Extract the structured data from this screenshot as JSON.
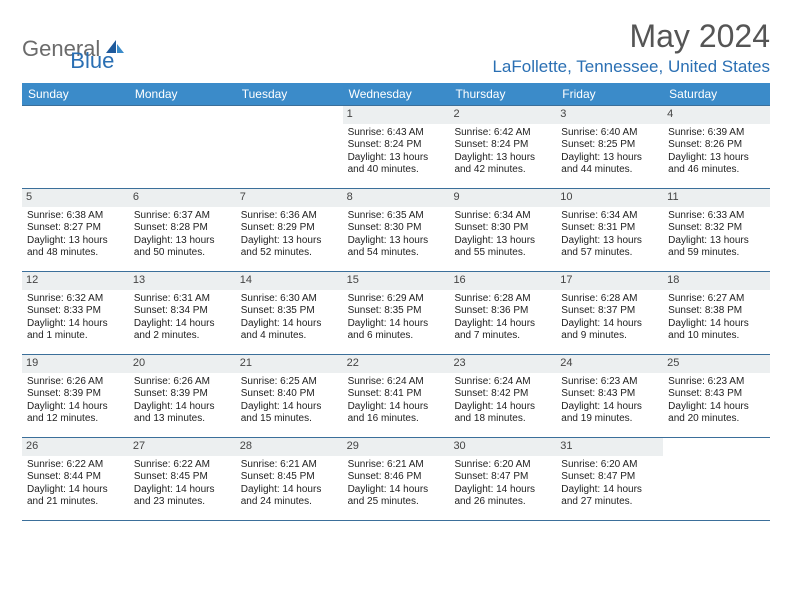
{
  "brand": {
    "part1": "General",
    "part2": "Blue"
  },
  "title": "May 2024",
  "location": "LaFollette, Tennessee, United States",
  "colors": {
    "header_bg": "#3b8bc9",
    "header_text": "#ffffff",
    "row_border": "#3b6f9a",
    "daynum_bg": "#eceff0",
    "accent": "#2a6fb3",
    "logo_gray": "#6b6b6b"
  },
  "dow": [
    "Sunday",
    "Monday",
    "Tuesday",
    "Wednesday",
    "Thursday",
    "Friday",
    "Saturday"
  ],
  "weeks": [
    [
      {
        "n": "",
        "sr": "",
        "ss": "",
        "dl": ""
      },
      {
        "n": "",
        "sr": "",
        "ss": "",
        "dl": ""
      },
      {
        "n": "",
        "sr": "",
        "ss": "",
        "dl": ""
      },
      {
        "n": "1",
        "sr": "Sunrise: 6:43 AM",
        "ss": "Sunset: 8:24 PM",
        "dl": "Daylight: 13 hours and 40 minutes."
      },
      {
        "n": "2",
        "sr": "Sunrise: 6:42 AM",
        "ss": "Sunset: 8:24 PM",
        "dl": "Daylight: 13 hours and 42 minutes."
      },
      {
        "n": "3",
        "sr": "Sunrise: 6:40 AM",
        "ss": "Sunset: 8:25 PM",
        "dl": "Daylight: 13 hours and 44 minutes."
      },
      {
        "n": "4",
        "sr": "Sunrise: 6:39 AM",
        "ss": "Sunset: 8:26 PM",
        "dl": "Daylight: 13 hours and 46 minutes."
      }
    ],
    [
      {
        "n": "5",
        "sr": "Sunrise: 6:38 AM",
        "ss": "Sunset: 8:27 PM",
        "dl": "Daylight: 13 hours and 48 minutes."
      },
      {
        "n": "6",
        "sr": "Sunrise: 6:37 AM",
        "ss": "Sunset: 8:28 PM",
        "dl": "Daylight: 13 hours and 50 minutes."
      },
      {
        "n": "7",
        "sr": "Sunrise: 6:36 AM",
        "ss": "Sunset: 8:29 PM",
        "dl": "Daylight: 13 hours and 52 minutes."
      },
      {
        "n": "8",
        "sr": "Sunrise: 6:35 AM",
        "ss": "Sunset: 8:30 PM",
        "dl": "Daylight: 13 hours and 54 minutes."
      },
      {
        "n": "9",
        "sr": "Sunrise: 6:34 AM",
        "ss": "Sunset: 8:30 PM",
        "dl": "Daylight: 13 hours and 55 minutes."
      },
      {
        "n": "10",
        "sr": "Sunrise: 6:34 AM",
        "ss": "Sunset: 8:31 PM",
        "dl": "Daylight: 13 hours and 57 minutes."
      },
      {
        "n": "11",
        "sr": "Sunrise: 6:33 AM",
        "ss": "Sunset: 8:32 PM",
        "dl": "Daylight: 13 hours and 59 minutes."
      }
    ],
    [
      {
        "n": "12",
        "sr": "Sunrise: 6:32 AM",
        "ss": "Sunset: 8:33 PM",
        "dl": "Daylight: 14 hours and 1 minute."
      },
      {
        "n": "13",
        "sr": "Sunrise: 6:31 AM",
        "ss": "Sunset: 8:34 PM",
        "dl": "Daylight: 14 hours and 2 minutes."
      },
      {
        "n": "14",
        "sr": "Sunrise: 6:30 AM",
        "ss": "Sunset: 8:35 PM",
        "dl": "Daylight: 14 hours and 4 minutes."
      },
      {
        "n": "15",
        "sr": "Sunrise: 6:29 AM",
        "ss": "Sunset: 8:35 PM",
        "dl": "Daylight: 14 hours and 6 minutes."
      },
      {
        "n": "16",
        "sr": "Sunrise: 6:28 AM",
        "ss": "Sunset: 8:36 PM",
        "dl": "Daylight: 14 hours and 7 minutes."
      },
      {
        "n": "17",
        "sr": "Sunrise: 6:28 AM",
        "ss": "Sunset: 8:37 PM",
        "dl": "Daylight: 14 hours and 9 minutes."
      },
      {
        "n": "18",
        "sr": "Sunrise: 6:27 AM",
        "ss": "Sunset: 8:38 PM",
        "dl": "Daylight: 14 hours and 10 minutes."
      }
    ],
    [
      {
        "n": "19",
        "sr": "Sunrise: 6:26 AM",
        "ss": "Sunset: 8:39 PM",
        "dl": "Daylight: 14 hours and 12 minutes."
      },
      {
        "n": "20",
        "sr": "Sunrise: 6:26 AM",
        "ss": "Sunset: 8:39 PM",
        "dl": "Daylight: 14 hours and 13 minutes."
      },
      {
        "n": "21",
        "sr": "Sunrise: 6:25 AM",
        "ss": "Sunset: 8:40 PM",
        "dl": "Daylight: 14 hours and 15 minutes."
      },
      {
        "n": "22",
        "sr": "Sunrise: 6:24 AM",
        "ss": "Sunset: 8:41 PM",
        "dl": "Daylight: 14 hours and 16 minutes."
      },
      {
        "n": "23",
        "sr": "Sunrise: 6:24 AM",
        "ss": "Sunset: 8:42 PM",
        "dl": "Daylight: 14 hours and 18 minutes."
      },
      {
        "n": "24",
        "sr": "Sunrise: 6:23 AM",
        "ss": "Sunset: 8:43 PM",
        "dl": "Daylight: 14 hours and 19 minutes."
      },
      {
        "n": "25",
        "sr": "Sunrise: 6:23 AM",
        "ss": "Sunset: 8:43 PM",
        "dl": "Daylight: 14 hours and 20 minutes."
      }
    ],
    [
      {
        "n": "26",
        "sr": "Sunrise: 6:22 AM",
        "ss": "Sunset: 8:44 PM",
        "dl": "Daylight: 14 hours and 21 minutes."
      },
      {
        "n": "27",
        "sr": "Sunrise: 6:22 AM",
        "ss": "Sunset: 8:45 PM",
        "dl": "Daylight: 14 hours and 23 minutes."
      },
      {
        "n": "28",
        "sr": "Sunrise: 6:21 AM",
        "ss": "Sunset: 8:45 PM",
        "dl": "Daylight: 14 hours and 24 minutes."
      },
      {
        "n": "29",
        "sr": "Sunrise: 6:21 AM",
        "ss": "Sunset: 8:46 PM",
        "dl": "Daylight: 14 hours and 25 minutes."
      },
      {
        "n": "30",
        "sr": "Sunrise: 6:20 AM",
        "ss": "Sunset: 8:47 PM",
        "dl": "Daylight: 14 hours and 26 minutes."
      },
      {
        "n": "31",
        "sr": "Sunrise: 6:20 AM",
        "ss": "Sunset: 8:47 PM",
        "dl": "Daylight: 14 hours and 27 minutes."
      },
      {
        "n": "",
        "sr": "",
        "ss": "",
        "dl": ""
      }
    ]
  ]
}
